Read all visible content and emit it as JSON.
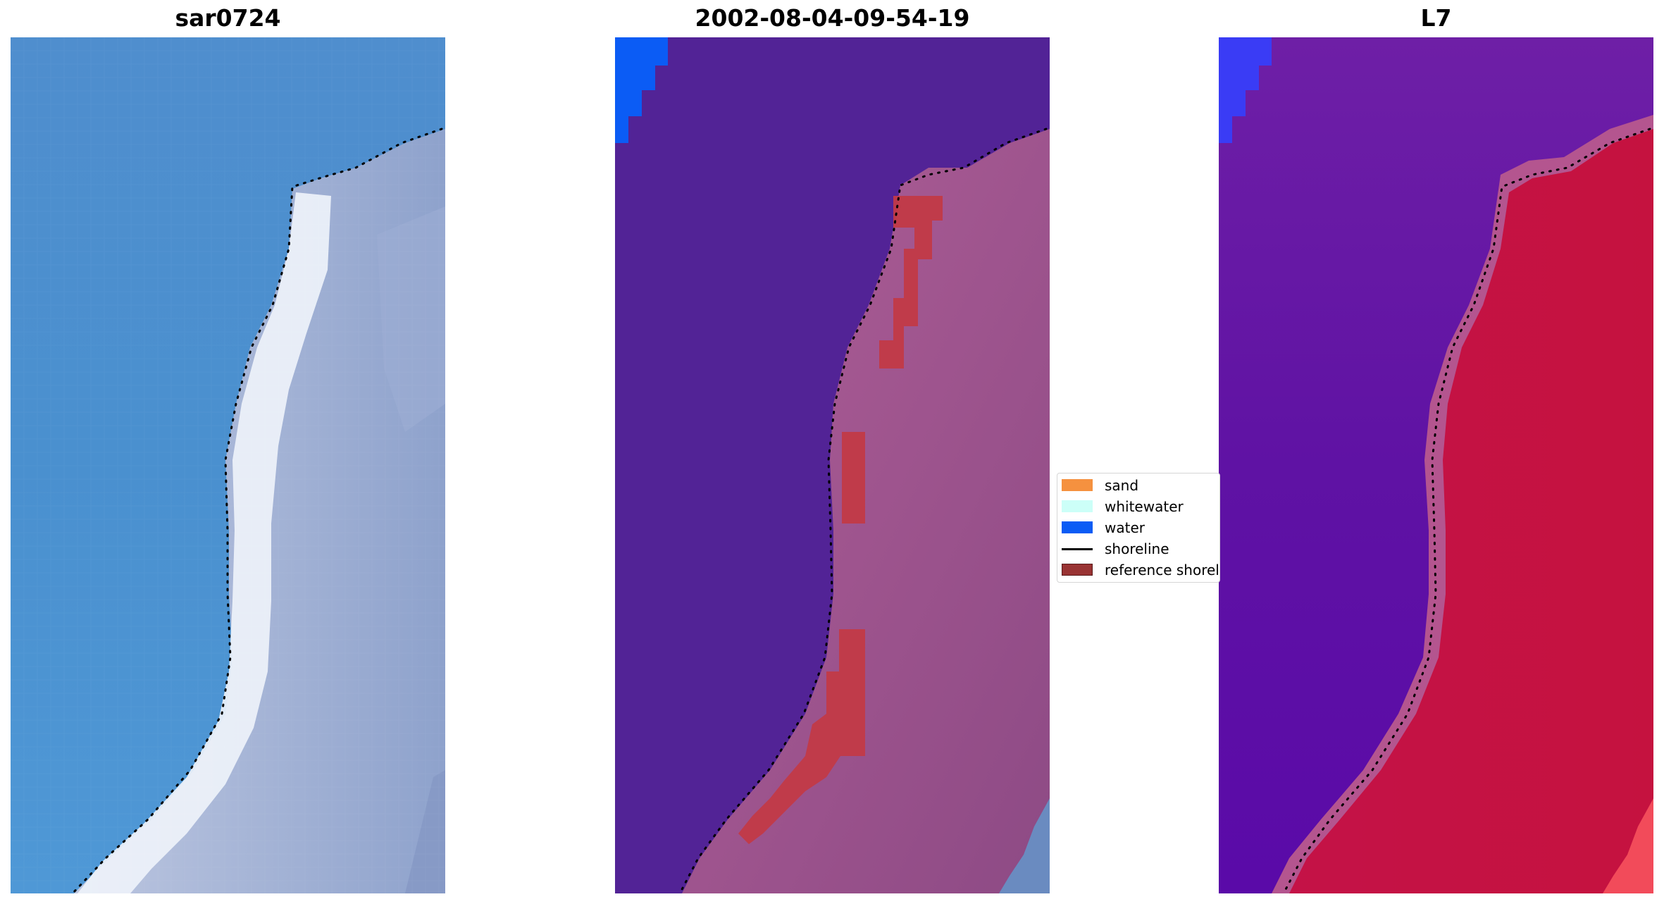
{
  "panels": [
    {
      "title": "sar0724"
    },
    {
      "title": "2002-08-04-09-54-19"
    },
    {
      "title": "L7"
    }
  ],
  "legend": {
    "items": [
      {
        "label": "sand",
        "color": "#f5913f"
      },
      {
        "label": "whitewater",
        "color": "#ccfff8"
      },
      {
        "label": "water",
        "color": "#0b5cf5"
      },
      {
        "label": "shoreline",
        "color": "#000000"
      },
      {
        "label": "reference shoreline buffer",
        "color": "#993333"
      }
    ]
  },
  "colors": {
    "rgb_water": "#4a8ed0",
    "rgb_land": "#aeb8d8",
    "rgb_beach": "#f4f6fb",
    "class_water": "#522396",
    "class_land": "#a35b93",
    "class_buffer": "#c23a47",
    "class_water_label": "#0b5cf5",
    "mndwi_water": "#650fa5",
    "mndwi_land": "#c8143f",
    "mndwi_edge": "#b75592",
    "mndwi_blue": "#3a3cf5"
  }
}
